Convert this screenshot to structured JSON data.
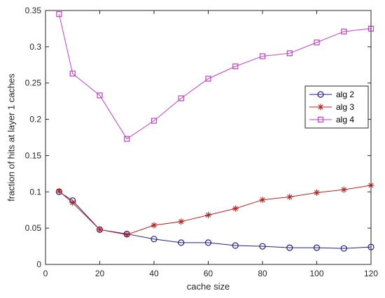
{
  "chart_data": {
    "type": "line",
    "title": "",
    "xlabel": "cache size",
    "ylabel": "fraction of hits at layer 1 caches",
    "xlim": [
      0,
      120
    ],
    "ylim": [
      0,
      0.35
    ],
    "xticks": [
      0,
      20,
      40,
      60,
      80,
      100,
      120
    ],
    "yticks": [
      0,
      0.05,
      0.1,
      0.15,
      0.2,
      0.25,
      0.3,
      0.35
    ],
    "xtick_labels": [
      "0",
      "20",
      "40",
      "60",
      "80",
      "100",
      "120"
    ],
    "ytick_labels": [
      "0",
      "0.05",
      "0.1",
      "0.15",
      "0.2",
      "0.25",
      "0.3",
      "0.35"
    ],
    "grid": false,
    "legend_position": "right",
    "x": [
      5,
      10,
      20,
      30,
      40,
      50,
      60,
      70,
      80,
      90,
      100,
      110,
      120
    ],
    "series": [
      {
        "name": "alg 2",
        "color": "#1f1f8a",
        "marker": "circle",
        "values": [
          0.1,
          0.088,
          0.048,
          0.042,
          0.035,
          0.03,
          0.03,
          0.026,
          0.025,
          0.023,
          0.023,
          0.022,
          0.024
        ]
      },
      {
        "name": "alg 3",
        "color": "#b22222",
        "marker": "star",
        "values": [
          0.101,
          0.085,
          0.048,
          0.041,
          0.054,
          0.059,
          0.068,
          0.077,
          0.089,
          0.093,
          0.099,
          0.103,
          0.109
        ]
      },
      {
        "name": "alg 4",
        "color": "#c040c0",
        "marker": "square",
        "values": [
          0.345,
          0.263,
          0.233,
          0.173,
          0.198,
          0.229,
          0.256,
          0.273,
          0.287,
          0.291,
          0.306,
          0.321,
          0.325
        ]
      }
    ]
  }
}
